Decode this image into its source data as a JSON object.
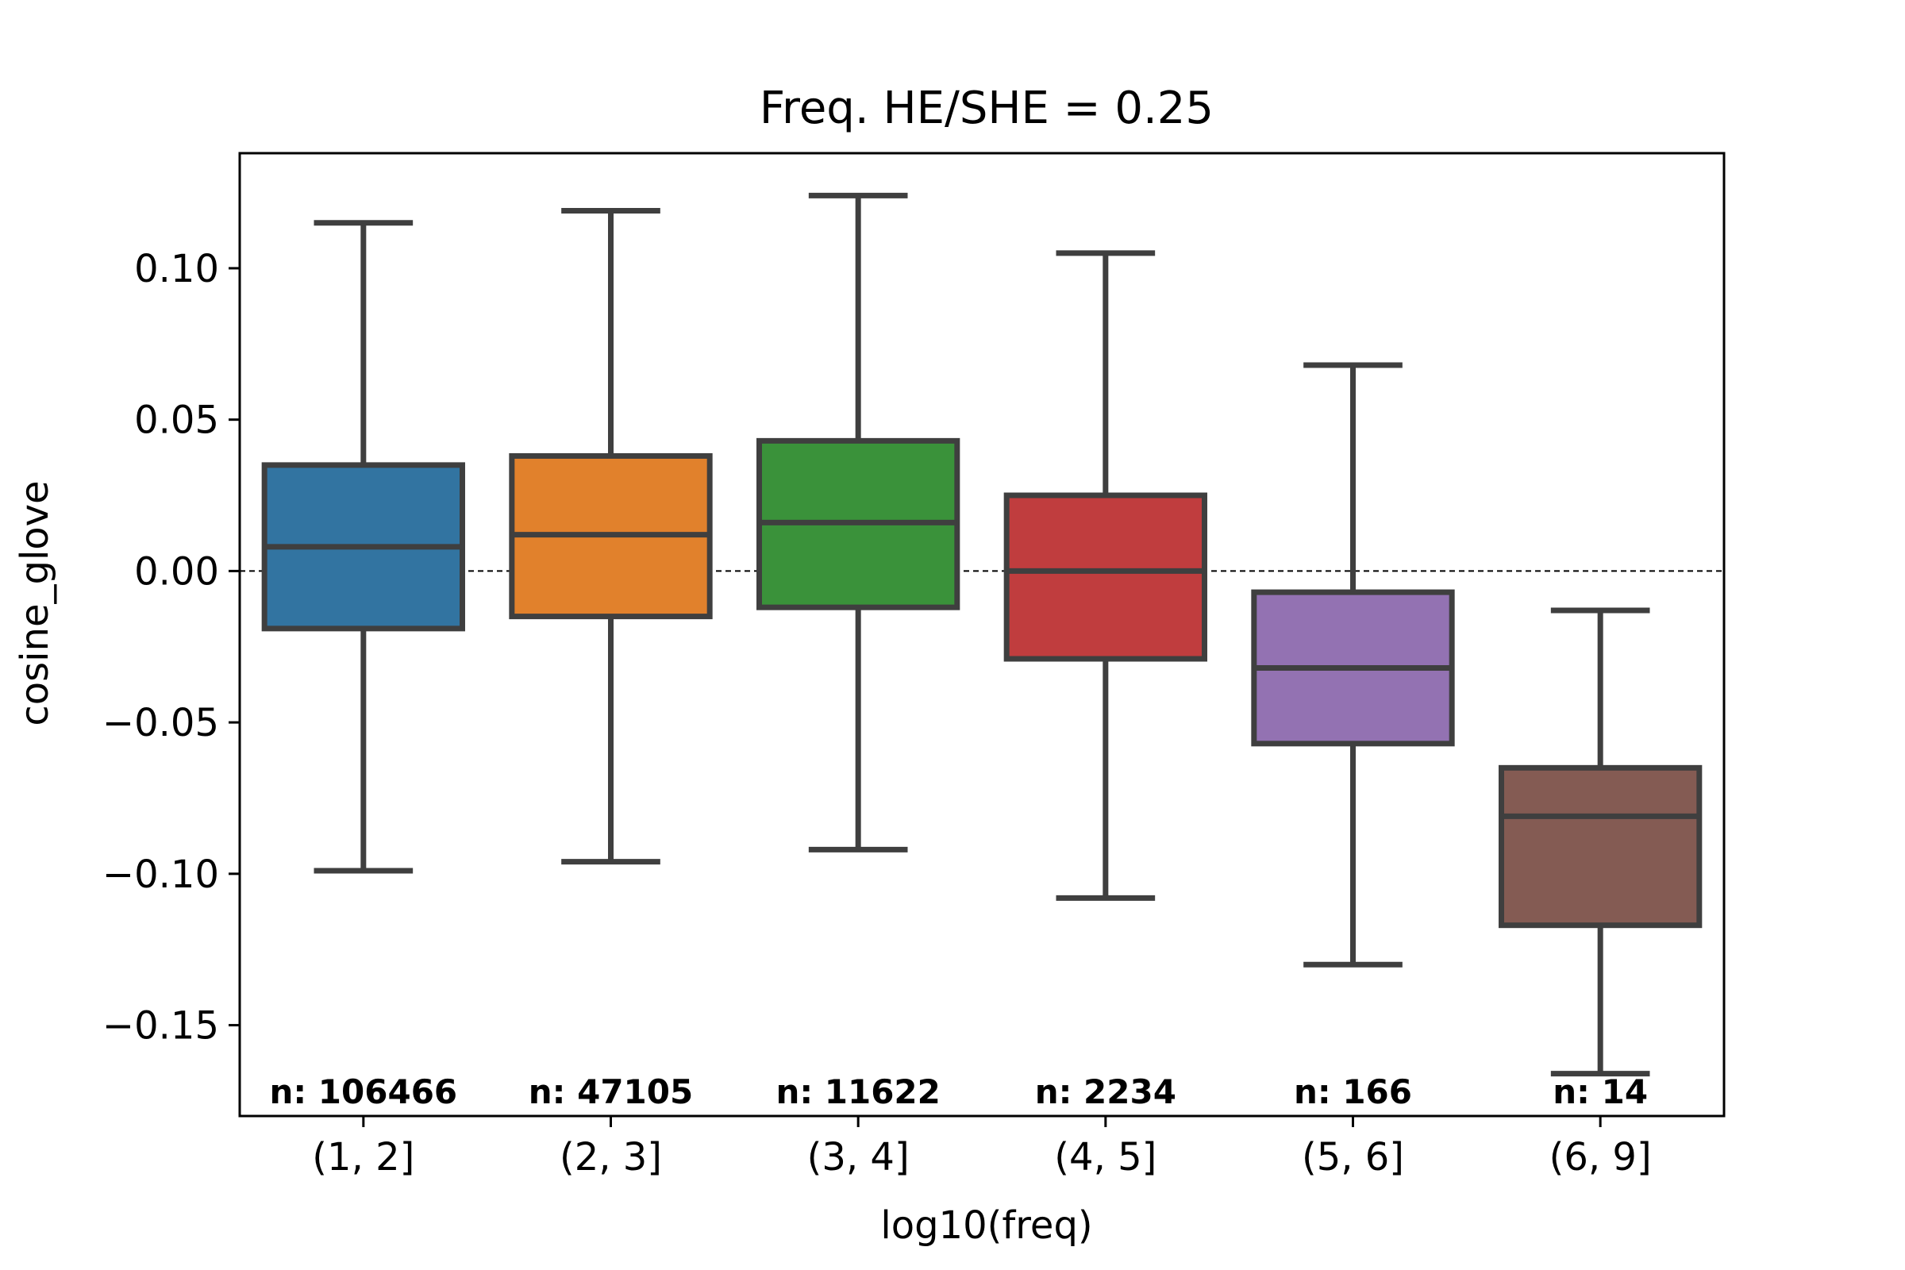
{
  "chart_data": {
    "type": "box",
    "title": "Freq. HE/SHE = 0.25",
    "xlabel": "log10(freq)",
    "ylabel": "cosine_glove",
    "ylim": [
      -0.18,
      0.138
    ],
    "yticks": [
      0.1,
      0.05,
      0.0,
      -0.05,
      -0.1,
      -0.15
    ],
    "ytick_labels": [
      "0.10",
      "0.05",
      "0.00",
      "−0.05",
      "−0.10",
      "−0.15"
    ],
    "reference_line": {
      "y": 0.0,
      "style": "dashed"
    },
    "categories": [
      "(1, 2]",
      "(2, 3]",
      "(3, 4]",
      "(4, 5]",
      "(5, 6]",
      "(6, 9]"
    ],
    "counts": [
      "n: 106466",
      "n: 47105",
      "n: 11622",
      "n: 2234",
      "n: 166",
      "n: 14"
    ],
    "boxes": [
      {
        "whisker_low": -0.099,
        "q1": -0.019,
        "median": 0.008,
        "q3": 0.035,
        "whisker_high": 0.115,
        "color": "#3274a1"
      },
      {
        "whisker_low": -0.096,
        "q1": -0.015,
        "median": 0.012,
        "q3": 0.038,
        "whisker_high": 0.119,
        "color": "#e1812c"
      },
      {
        "whisker_low": -0.092,
        "q1": -0.012,
        "median": 0.016,
        "q3": 0.043,
        "whisker_high": 0.124,
        "color": "#3a923a"
      },
      {
        "whisker_low": -0.108,
        "q1": -0.029,
        "median": 0.0,
        "q3": 0.025,
        "whisker_high": 0.105,
        "color": "#c03d3e"
      },
      {
        "whisker_low": -0.13,
        "q1": -0.057,
        "median": -0.032,
        "q3": -0.007,
        "whisker_high": 0.068,
        "color": "#9372b2"
      },
      {
        "whisker_low": -0.166,
        "q1": -0.117,
        "median": -0.081,
        "q3": -0.065,
        "whisker_high": -0.013,
        "color": "#845b53"
      }
    ],
    "grid": false,
    "legend": "none"
  }
}
